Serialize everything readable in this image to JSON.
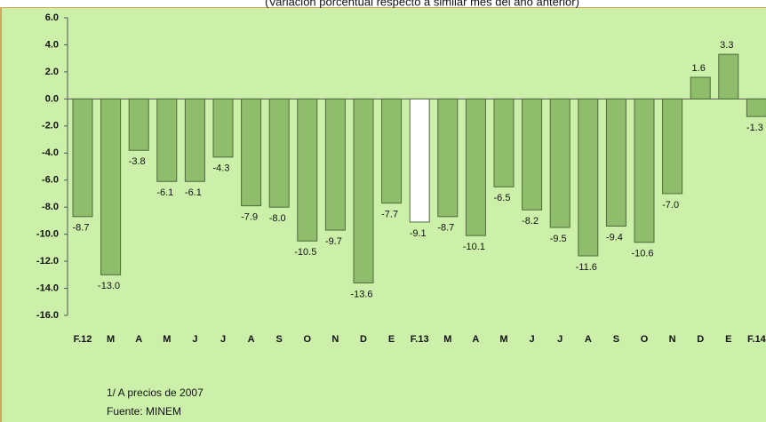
{
  "chart_data": {
    "type": "bar",
    "subtitle": "(Variación porcentual respecto a similar mes del año anterior)",
    "categories": [
      "F.12",
      "M",
      "A",
      "M",
      "J",
      "J",
      "A",
      "S",
      "O",
      "N",
      "D",
      "E",
      "F.13",
      "M",
      "A",
      "M",
      "J",
      "J",
      "A",
      "S",
      "O",
      "N",
      "D",
      "E",
      "F.14"
    ],
    "values": [
      -8.7,
      -13.0,
      -3.8,
      -6.1,
      -6.1,
      -4.3,
      -7.9,
      -8.0,
      -10.5,
      -9.7,
      -13.6,
      -7.7,
      -9.1,
      -8.7,
      -10.1,
      -6.5,
      -8.2,
      -9.5,
      -11.6,
      -9.4,
      -10.6,
      -7.0,
      1.6,
      3.3,
      -1.3
    ],
    "value_labels": [
      "-8.7",
      "-13.0",
      "-3.8",
      "-6.1",
      "-6.1",
      "-4.3",
      "-7.9",
      "-8.0",
      "-10.5",
      "-9.7",
      "-13.6",
      "-7.7",
      "-9.1",
      "-8.7",
      "-10.1",
      "-6.5",
      "-8.2",
      "-9.5",
      "-11.6",
      "-9.4",
      "-10.6",
      "-7.0",
      "1.6",
      "3.3",
      "-1.3"
    ],
    "colors": [
      "#8fbd6c",
      "#8fbd6c",
      "#8fbd6c",
      "#8fbd6c",
      "#8fbd6c",
      "#8fbd6c",
      "#8fbd6c",
      "#8fbd6c",
      "#8fbd6c",
      "#8fbd6c",
      "#8fbd6c",
      "#8fbd6c",
      "#ffffff",
      "#8fbd6c",
      "#8fbd6c",
      "#8fbd6c",
      "#8fbd6c",
      "#8fbd6c",
      "#8fbd6c",
      "#8fbd6c",
      "#8fbd6c",
      "#8fbd6c",
      "#8fbd6c",
      "#8fbd6c",
      "#8fbd6c"
    ],
    "ylim": [
      -16,
      6
    ],
    "yticks": [
      {
        "value": 6,
        "label": "6.0"
      },
      {
        "value": 4,
        "label": "4.0"
      },
      {
        "value": 2,
        "label": "2.0"
      },
      {
        "value": 0,
        "label": "0.0"
      },
      {
        "value": -2,
        "label": "-2.0"
      },
      {
        "value": -4,
        "label": "-4.0"
      },
      {
        "value": -6,
        "label": "-6.0"
      },
      {
        "value": -8,
        "label": "-8.0"
      },
      {
        "value": -10,
        "label": "-10.0"
      },
      {
        "value": -12,
        "label": "-12.0"
      },
      {
        "value": -14,
        "label": "-14.0"
      },
      {
        "value": -16,
        "label": "-16.0"
      }
    ],
    "notes": [
      "1/ A precios de 2007",
      "Fuente: MINEM"
    ]
  }
}
